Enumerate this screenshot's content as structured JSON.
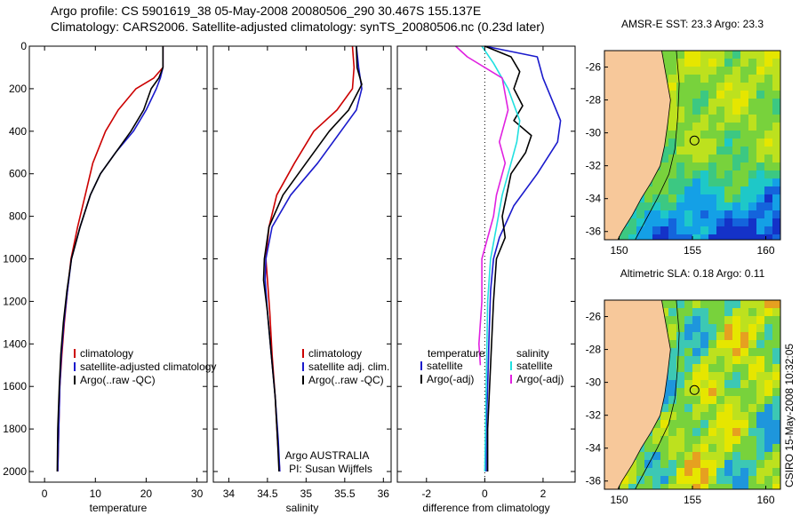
{
  "header": {
    "line1": "Argo profile: CS 5901619_38 05-May-2008 20080506_290 30.467S 155.137E",
    "line2": "Climatology: CARS2006. Satellite-adjusted climatology: synTS_20080506.nc (0.23d later)"
  },
  "side_label": "CSIRO 15-May-2008 10:32:05",
  "colors": {
    "red": "#cc0000",
    "blue": "#1a1acc",
    "black": "#000000",
    "magenta": "#e020e0",
    "cyan": "#20e0e0",
    "land": "#f7c89a",
    "ocean_base": "#6fd23a"
  },
  "chart_data": [
    {
      "type": "line",
      "xlabel": "temperature",
      "ylim": [
        2050,
        0
      ],
      "xlim": [
        -3,
        32
      ],
      "xticks": [
        0,
        10,
        20,
        30
      ],
      "yticks": [
        0,
        200,
        400,
        600,
        800,
        1000,
        1200,
        1400,
        1600,
        1800,
        2000
      ],
      "legend": [
        "climatology",
        "satellite-adjusted climatology",
        "Argo(..raw -QC)"
      ],
      "series": [
        {
          "name": "climatology",
          "color": "red",
          "x": [
            23.3,
            23.3,
            21.5,
            18.0,
            14.5,
            12.0,
            9.5,
            8.0,
            6.5,
            5.2,
            4.5,
            3.9,
            3.4,
            3.0,
            2.8,
            2.6
          ],
          "y": [
            0,
            100,
            150,
            200,
            300,
            400,
            550,
            700,
            850,
            1000,
            1150,
            1300,
            1450,
            1600,
            1800,
            2000
          ]
        },
        {
          "name": "satellite-adjusted climatology",
          "color": "blue",
          "x": [
            23.3,
            23.3,
            22.8,
            22.0,
            20.0,
            17.5,
            14.0,
            11.0,
            9.0,
            7.0,
            5.3,
            4.5,
            3.8,
            3.3,
            3.0,
            2.8,
            2.6
          ],
          "y": [
            0,
            100,
            150,
            200,
            300,
            400,
            500,
            600,
            700,
            850,
            1000,
            1150,
            1300,
            1450,
            1600,
            1800,
            2000
          ]
        },
        {
          "name": "Argo(..raw -QC)",
          "color": "black",
          "x": [
            23.3,
            23.3,
            22.5,
            21.0,
            19.5,
            17.0,
            14.0,
            11.0,
            9.0,
            7.0,
            5.3,
            4.4,
            3.7,
            3.2,
            2.9,
            2.6,
            2.5
          ],
          "y": [
            0,
            100,
            150,
            200,
            300,
            400,
            500,
            600,
            700,
            850,
            1000,
            1150,
            1300,
            1450,
            1600,
            1800,
            2000
          ]
        }
      ]
    },
    {
      "type": "line",
      "xlabel": "salinity",
      "ylim": [
        2050,
        0
      ],
      "xlim": [
        33.8,
        36.1
      ],
      "xticks": [
        34,
        34.5,
        35,
        35.5,
        36
      ],
      "legend": [
        "climatology",
        "satellite adj. clim.",
        "Argo(..raw -QC)"
      ],
      "annotations": [
        "Argo AUSTRALIA",
        "PI: Susan Wijffels"
      ],
      "series": [
        {
          "name": "climatology",
          "color": "red",
          "x": [
            35.6,
            35.62,
            35.6,
            35.4,
            35.1,
            34.85,
            34.62,
            34.52,
            34.48,
            34.5,
            34.53,
            34.56,
            34.6,
            34.63,
            34.66
          ],
          "y": [
            0,
            100,
            200,
            300,
            400,
            550,
            700,
            850,
            1000,
            1100,
            1250,
            1450,
            1650,
            1850,
            2000
          ]
        },
        {
          "name": "satellite adj. clim.",
          "color": "blue",
          "x": [
            35.65,
            35.68,
            35.72,
            35.65,
            35.45,
            35.15,
            34.8,
            34.56,
            34.48,
            34.47,
            34.5,
            34.55,
            34.6,
            34.64,
            34.66
          ],
          "y": [
            0,
            100,
            200,
            300,
            400,
            550,
            700,
            850,
            1000,
            1100,
            1250,
            1450,
            1650,
            1850,
            2000
          ]
        },
        {
          "name": "Argo(..raw -QC)",
          "color": "black",
          "x": [
            35.65,
            35.66,
            35.72,
            35.55,
            35.3,
            35.0,
            34.7,
            34.52,
            34.46,
            34.45,
            34.5,
            34.55,
            34.6,
            34.63,
            34.65
          ],
          "y": [
            0,
            100,
            180,
            300,
            400,
            550,
            700,
            850,
            1000,
            1100,
            1250,
            1450,
            1650,
            1850,
            2000
          ]
        }
      ]
    },
    {
      "type": "line",
      "xlabel": "difference from climatology",
      "ylim": [
        2050,
        0
      ],
      "xlim": [
        -3,
        3.1
      ],
      "xticks": [
        -2,
        0,
        2
      ],
      "legend_left": [
        "temperature",
        "satellite",
        "Argo(-adj)"
      ],
      "legend_right": [
        "salinity",
        "satellite",
        "Argo(-adj)"
      ],
      "series": [
        {
          "name": "temperature satellite",
          "color": "blue",
          "x": [
            0.0,
            1.8,
            2.0,
            2.3,
            2.6,
            2.5,
            1.8,
            1.0,
            0.5,
            0.3,
            0.2,
            0.15,
            0.1,
            0.05,
            0.05
          ],
          "y": [
            0,
            50,
            150,
            250,
            350,
            450,
            600,
            750,
            900,
            1000,
            1150,
            1350,
            1600,
            1800,
            2000
          ]
        },
        {
          "name": "temperature Argo(-adj)",
          "color": "black",
          "x": [
            0.0,
            0.9,
            1.2,
            1.0,
            1.3,
            1.0,
            1.6,
            1.4,
            0.9,
            0.6,
            0.7,
            0.4,
            0.3,
            0.2,
            0.1,
            0.1
          ],
          "y": [
            0,
            50,
            120,
            200,
            280,
            350,
            420,
            500,
            600,
            800,
            900,
            1000,
            1200,
            1500,
            1800,
            2000
          ]
        },
        {
          "name": "salinity satellite",
          "color": "cyan",
          "x": [
            -0.1,
            0.3,
            0.8,
            1.2,
            1.1,
            0.9,
            0.6,
            0.4,
            0.2,
            0.1,
            0.05,
            0.0
          ],
          "y": [
            0,
            80,
            200,
            350,
            450,
            550,
            700,
            850,
            1000,
            1200,
            1600,
            2000
          ]
        },
        {
          "name": "salinity Argo(-adj)",
          "color": "magenta",
          "x": [
            -1.0,
            -0.6,
            0.6,
            0.8,
            0.5,
            0.7,
            0.4,
            0.3,
            -0.1,
            -0.1,
            -0.2,
            -0.15
          ],
          "y": [
            0,
            50,
            150,
            300,
            450,
            550,
            700,
            800,
            1000,
            1200,
            1400,
            1500
          ]
        }
      ]
    },
    {
      "type": "heatmap",
      "title": "AMSR-E SST: 23.3 Argo: 23.3",
      "xlim": [
        149,
        161
      ],
      "ylim": [
        -36.5,
        -25
      ],
      "xticks": [
        150,
        155,
        160
      ],
      "yticks": [
        -26,
        -28,
        -30,
        -32,
        -34,
        -36
      ],
      "marker": {
        "lon": 155.137,
        "lat": -30.467
      }
    },
    {
      "type": "heatmap",
      "title": "Altimetric SLA: 0.18 Argo: 0.11",
      "xlim": [
        149,
        161
      ],
      "ylim": [
        -36.5,
        -25
      ],
      "xticks": [
        150,
        155,
        160
      ],
      "yticks": [
        -26,
        -28,
        -30,
        -32,
        -34,
        -36
      ],
      "marker": {
        "lon": 155.137,
        "lat": -30.467
      }
    }
  ]
}
